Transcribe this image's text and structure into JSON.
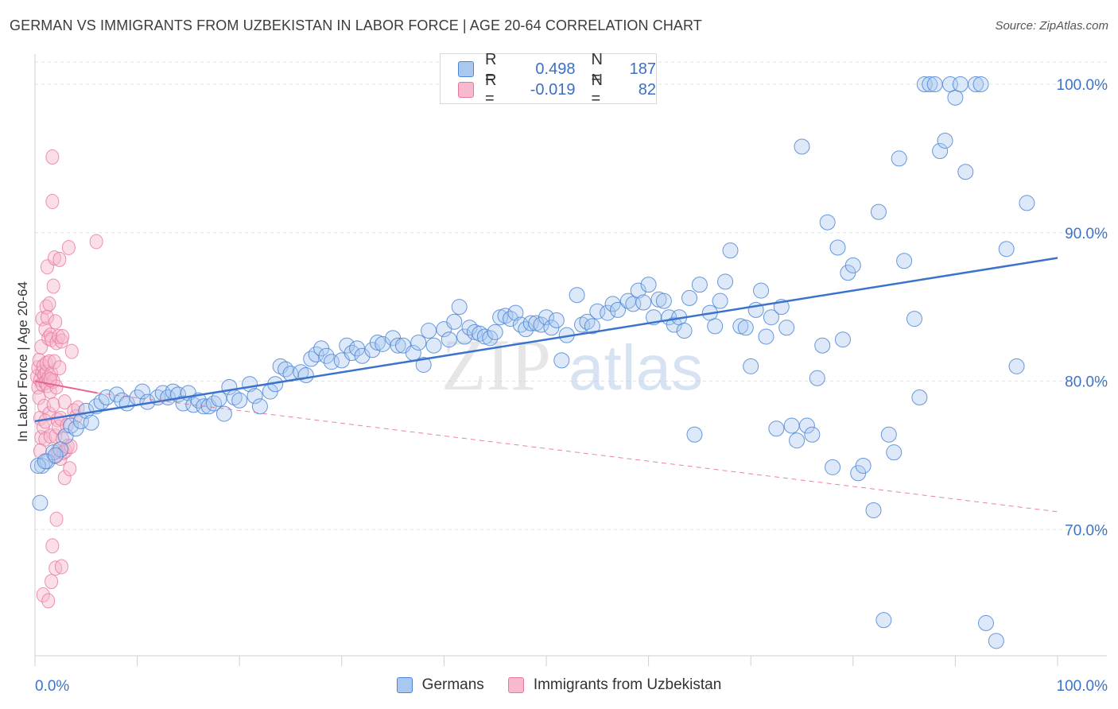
{
  "header": {
    "title": "GERMAN VS IMMIGRANTS FROM UZBEKISTAN IN LABOR FORCE | AGE 20-64 CORRELATION CHART",
    "source": "Source: ZipAtlas.com"
  },
  "watermark": {
    "zip": "ZIP",
    "atlas": "atlas"
  },
  "legend": {
    "rows": [
      {
        "r_label": "R =",
        "r_value": "0.498",
        "n_label": "N =",
        "n_value": "187"
      },
      {
        "r_label": "R =",
        "r_value": "-0.019",
        "n_label": "N =",
        "n_value": "82"
      }
    ]
  },
  "colors": {
    "germans_fill": "#a9c8ef",
    "germans_stroke": "#4d86d6",
    "germans_line": "#3b73cc",
    "uzbek_fill": "#f7b9cb",
    "uzbek_stroke": "#e9779d",
    "uzbek_line": "#e5648f",
    "axis_text": "#3b73cc",
    "grid": "#e3e3e3"
  },
  "chart_data": {
    "type": "scatter",
    "title": "GERMAN VS IMMIGRANTS FROM UZBEKISTAN IN LABOR FORCE | AGE 20-64 CORRELATION CHART",
    "xlabel": "",
    "ylabel": "In Labor Force | Age 20-64",
    "xlim": [
      0,
      100
    ],
    "ylim": [
      61.5,
      101.5
    ],
    "x_tick_labels": [
      "0.0%",
      "100.0%"
    ],
    "y_ticks": [
      70,
      80,
      90,
      100
    ],
    "y_tick_labels": [
      "70.0%",
      "80.0%",
      "90.0%",
      "100.0%"
    ],
    "grid": true,
    "legend_position": "top-center",
    "series": [
      {
        "name": "Germans",
        "r": 0.498,
        "n": 187,
        "trend": {
          "x": [
            0,
            100
          ],
          "y": [
            77.3,
            88.3
          ],
          "style": "solid"
        },
        "points": [
          [
            0.5,
            71.8
          ],
          [
            0.7,
            74.3
          ],
          [
            1.2,
            74.6
          ],
          [
            1.8,
            75.2
          ],
          [
            2.5,
            75.4
          ],
          [
            3,
            76.3
          ],
          [
            3.5,
            77
          ],
          [
            4,
            76.8
          ],
          [
            4.5,
            77.3
          ],
          [
            5,
            78
          ],
          [
            5.5,
            77.2
          ],
          [
            6,
            78.3
          ],
          [
            6.5,
            78.6
          ],
          [
            7,
            78.9
          ],
          [
            8,
            79.1
          ],
          [
            8.5,
            78.7
          ],
          [
            9,
            78.5
          ],
          [
            10,
            78.9
          ],
          [
            10.5,
            79.3
          ],
          [
            11,
            78.6
          ],
          [
            12,
            78.9
          ],
          [
            12.5,
            79.2
          ],
          [
            13,
            78.9
          ],
          [
            13.5,
            79.3
          ],
          [
            14,
            79.1
          ],
          [
            14.5,
            78.5
          ],
          [
            15,
            79.2
          ],
          [
            15.5,
            78.4
          ],
          [
            16,
            78.7
          ],
          [
            16.5,
            78.3
          ],
          [
            17,
            78.3
          ],
          [
            17.5,
            78.5
          ],
          [
            18,
            78.8
          ],
          [
            18.5,
            77.8
          ],
          [
            19,
            79.6
          ],
          [
            19.5,
            78.9
          ],
          [
            20,
            78.7
          ],
          [
            21,
            79.8
          ],
          [
            21.5,
            79
          ],
          [
            22,
            78.3
          ],
          [
            23,
            79.3
          ],
          [
            23.5,
            79.8
          ],
          [
            24,
            81
          ],
          [
            24.5,
            80.8
          ],
          [
            25,
            80.5
          ],
          [
            26,
            80.6
          ],
          [
            26.5,
            80.4
          ],
          [
            27,
            81.5
          ],
          [
            27.5,
            81.8
          ],
          [
            28,
            82.2
          ],
          [
            28.5,
            81.7
          ],
          [
            29,
            81.3
          ],
          [
            30,
            81.4
          ],
          [
            30.5,
            82.4
          ],
          [
            31,
            81.9
          ],
          [
            31.5,
            82.2
          ],
          [
            32,
            81.7
          ],
          [
            33,
            82.1
          ],
          [
            33.5,
            82.6
          ],
          [
            34,
            82.5
          ],
          [
            35,
            82.9
          ],
          [
            35.5,
            82.4
          ],
          [
            36,
            82.4
          ],
          [
            37,
            81.9
          ],
          [
            37.5,
            82.6
          ],
          [
            38,
            81.1
          ],
          [
            38.5,
            83.4
          ],
          [
            39,
            82.4
          ],
          [
            40,
            83.5
          ],
          [
            40.5,
            82.8
          ],
          [
            41,
            84
          ],
          [
            41.5,
            85
          ],
          [
            42,
            83
          ],
          [
            42.5,
            83.6
          ],
          [
            43,
            83.3
          ],
          [
            43.5,
            83.2
          ],
          [
            44,
            83
          ],
          [
            44.5,
            82.9
          ],
          [
            45,
            83.3
          ],
          [
            45.5,
            84.3
          ],
          [
            46,
            84.4
          ],
          [
            46.5,
            84.2
          ],
          [
            47,
            84.6
          ],
          [
            47.5,
            83.8
          ],
          [
            48,
            83.5
          ],
          [
            48.5,
            83.9
          ],
          [
            49,
            83.9
          ],
          [
            49.5,
            83.8
          ],
          [
            50,
            84.3
          ],
          [
            50.5,
            83.6
          ],
          [
            51,
            84.1
          ],
          [
            51.5,
            81.4
          ],
          [
            52,
            83.1
          ],
          [
            53,
            85.8
          ],
          [
            53.5,
            83.8
          ],
          [
            54,
            84
          ],
          [
            54.5,
            83.7
          ],
          [
            55,
            84.7
          ],
          [
            56,
            84.6
          ],
          [
            56.5,
            85.2
          ],
          [
            57,
            84.8
          ],
          [
            58,
            85.4
          ],
          [
            58.5,
            85.2
          ],
          [
            59,
            86.1
          ],
          [
            59.5,
            85.3
          ],
          [
            60,
            86.5
          ],
          [
            60.5,
            84.3
          ],
          [
            61,
            85.5
          ],
          [
            61.5,
            85.4
          ],
          [
            62,
            84.3
          ],
          [
            62.5,
            83.8
          ],
          [
            63,
            84.3
          ],
          [
            63.5,
            83.4
          ],
          [
            64,
            85.6
          ],
          [
            64.5,
            76.4
          ],
          [
            65,
            86.5
          ],
          [
            66,
            84.6
          ],
          [
            66.5,
            83.7
          ],
          [
            67,
            85.4
          ],
          [
            67.5,
            86.7
          ],
          [
            68,
            88.8
          ],
          [
            69,
            83.7
          ],
          [
            69.5,
            83.6
          ],
          [
            70,
            81
          ],
          [
            70.5,
            84.8
          ],
          [
            71,
            86.1
          ],
          [
            71.5,
            83
          ],
          [
            72,
            84.3
          ],
          [
            72.5,
            76.8
          ],
          [
            73,
            85
          ],
          [
            73.5,
            83.6
          ],
          [
            74,
            77
          ],
          [
            74.5,
            76
          ],
          [
            75,
            95.8
          ],
          [
            75.5,
            77
          ],
          [
            76,
            76.4
          ],
          [
            76.5,
            80.2
          ],
          [
            77,
            82.4
          ],
          [
            77.5,
            90.7
          ],
          [
            78,
            74.2
          ],
          [
            78.5,
            89
          ],
          [
            79,
            82.8
          ],
          [
            79.5,
            87.3
          ],
          [
            80,
            87.8
          ],
          [
            80.5,
            73.8
          ],
          [
            81,
            74.3
          ],
          [
            82,
            71.3
          ],
          [
            82.5,
            91.4
          ],
          [
            83,
            63.9
          ],
          [
            83.5,
            76.4
          ],
          [
            84,
            75.2
          ],
          [
            84.5,
            95
          ],
          [
            85,
            88.1
          ],
          [
            86,
            84.2
          ],
          [
            86.5,
            78.9
          ],
          [
            87,
            100
          ],
          [
            87.5,
            100
          ],
          [
            88,
            100
          ],
          [
            88.5,
            95.5
          ],
          [
            89,
            96.2
          ],
          [
            89.5,
            100
          ],
          [
            90,
            99.1
          ],
          [
            90.5,
            100
          ],
          [
            91,
            94.1
          ],
          [
            92,
            100
          ],
          [
            92.5,
            100
          ],
          [
            93,
            63.7
          ],
          [
            94,
            62.5
          ],
          [
            95,
            88.9
          ],
          [
            96,
            81
          ],
          [
            97,
            92
          ],
          [
            0.3,
            74.3
          ],
          [
            1,
            74.6
          ],
          [
            2,
            75
          ]
        ]
      },
      {
        "name": "Immigrants from Uzbekistan",
        "r": -0.019,
        "n": 82,
        "trend_solid": {
          "x": [
            0,
            6.1
          ],
          "y": [
            80.0,
            79.2
          ]
        },
        "trend_dashed": {
          "x": [
            6.1,
            100
          ],
          "y": [
            79.2,
            71.2
          ]
        },
        "points": [
          [
            0.2,
            80.3
          ],
          [
            0.3,
            79.6
          ],
          [
            0.3,
            80.9
          ],
          [
            0.4,
            81.4
          ],
          [
            0.4,
            78.9
          ],
          [
            0.5,
            80.1
          ],
          [
            0.5,
            77.5
          ],
          [
            0.6,
            76.2
          ],
          [
            0.6,
            82.3
          ],
          [
            0.7,
            80.6
          ],
          [
            0.7,
            79.8
          ],
          [
            0.7,
            84.2
          ],
          [
            0.8,
            81
          ],
          [
            0.8,
            76.9
          ],
          [
            0.8,
            65.6
          ],
          [
            0.9,
            80.4
          ],
          [
            0.9,
            78.3
          ],
          [
            1,
            79.9
          ],
          [
            1,
            83.5
          ],
          [
            1,
            76.1
          ],
          [
            1.1,
            80.6
          ],
          [
            1.1,
            81.2
          ],
          [
            1.1,
            85
          ],
          [
            1.2,
            84.3
          ],
          [
            1.2,
            79.7
          ],
          [
            1.2,
            87.7
          ],
          [
            1.3,
            82.9
          ],
          [
            1.3,
            80.2
          ],
          [
            1.3,
            65.2
          ],
          [
            1.4,
            81.3
          ],
          [
            1.4,
            77.8
          ],
          [
            1.4,
            85.2
          ],
          [
            1.5,
            79.3
          ],
          [
            1.5,
            83.1
          ],
          [
            1.5,
            76.3
          ],
          [
            1.6,
            80.5
          ],
          [
            1.6,
            82.8
          ],
          [
            1.6,
            66.5
          ],
          [
            1.7,
            95.1
          ],
          [
            1.7,
            92.1
          ],
          [
            1.7,
            68.9
          ],
          [
            1.8,
            86.4
          ],
          [
            1.8,
            80
          ],
          [
            1.8,
            78.4
          ],
          [
            1.9,
            81.3
          ],
          [
            1.9,
            88.3
          ],
          [
            1.9,
            74.9
          ],
          [
            2,
            84
          ],
          [
            2,
            76.3
          ],
          [
            2,
            67.4
          ],
          [
            2.1,
            82.6
          ],
          [
            2.1,
            79.6
          ],
          [
            2.1,
            70.7
          ],
          [
            2.2,
            77.4
          ],
          [
            2.2,
            75.3
          ],
          [
            2.3,
            83
          ],
          [
            2.3,
            76.9
          ],
          [
            2.4,
            80.9
          ],
          [
            2.4,
            88.2
          ],
          [
            2.5,
            77.5
          ],
          [
            2.5,
            74.8
          ],
          [
            2.6,
            82.7
          ],
          [
            2.6,
            67.5
          ],
          [
            2.7,
            83
          ],
          [
            2.7,
            76.1
          ],
          [
            2.8,
            75.2
          ],
          [
            2.9,
            78.6
          ],
          [
            2.9,
            73.5
          ],
          [
            3,
            75.3
          ],
          [
            3.1,
            77
          ],
          [
            3.2,
            75.6
          ],
          [
            3.3,
            89
          ],
          [
            3.4,
            74.1
          ],
          [
            3.5,
            75.6
          ],
          [
            3.6,
            82
          ],
          [
            3.8,
            78
          ],
          [
            4.0,
            77.6
          ],
          [
            4.2,
            78.2
          ],
          [
            6.0,
            89.4
          ],
          [
            1.0,
            77.3
          ],
          [
            0.5,
            75.3
          ],
          [
            1.5,
            80.1
          ]
        ]
      }
    ]
  }
}
